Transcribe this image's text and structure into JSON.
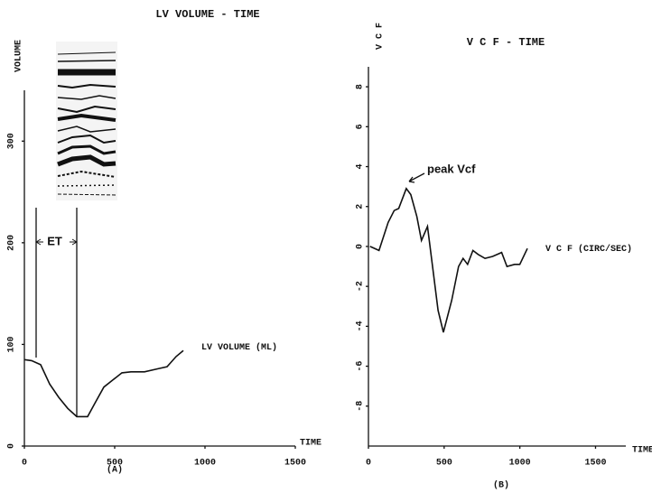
{
  "chart_data": [
    {
      "type": "line",
      "title": "LV VOLUME   - TIME",
      "y_label": "VOLUME",
      "x_label": "TIME",
      "panel_label": "(A)",
      "x": [
        0,
        40,
        90,
        140,
        190,
        240,
        290,
        350,
        390,
        440,
        490,
        540,
        590,
        665,
        740,
        790,
        840,
        880
      ],
      "series": [
        {
          "name": "LV VOLUME (ML)",
          "color": "#111111",
          "values": [
            85,
            84,
            80,
            61,
            48,
            37,
            29,
            29,
            42,
            58,
            65,
            72,
            73,
            73,
            76,
            78,
            88,
            94
          ]
        }
      ],
      "xlim": [
        0,
        1500
      ],
      "xticks": [
        0,
        500,
        1000,
        1500
      ],
      "ylim": [
        0,
        350
      ],
      "yticks": [
        0,
        100,
        200,
        300
      ],
      "annotations": [
        {
          "text": "ET",
          "x": [
            65,
            290
          ]
        }
      ]
    },
    {
      "type": "line",
      "title": "V C F  -  TIME",
      "y_label": "V C F",
      "x_label": "TIME",
      "panel_label": "(B)",
      "x": [
        10,
        70,
        130,
        170,
        200,
        250,
        280,
        320,
        350,
        390,
        430,
        460,
        495,
        550,
        595,
        625,
        655,
        690,
        725,
        770,
        820,
        880,
        915,
        965,
        1000,
        1050
      ],
      "series": [
        {
          "name": "V C F (CIRC/SEC)",
          "color": "#111111",
          "values": [
            0,
            -0.2,
            1.2,
            1.8,
            1.9,
            2.9,
            2.6,
            1.5,
            0.3,
            1.0,
            -1.4,
            -3.2,
            -4.3,
            -2.7,
            -1.0,
            -0.6,
            -0.9,
            -0.2,
            -0.4,
            -0.6,
            -0.5,
            -0.3,
            -1.0,
            -0.9,
            -0.9,
            -0.1
          ]
        }
      ],
      "xlim": [
        0,
        1700
      ],
      "xticks": [
        0,
        500,
        1000,
        1500
      ],
      "ylim": [
        -10,
        9
      ],
      "yticks": [
        -8,
        -6,
        -4,
        -2,
        0,
        2,
        4,
        6,
        8
      ],
      "annotations": [
        {
          "text": "peak Vcf"
        }
      ]
    }
  ]
}
